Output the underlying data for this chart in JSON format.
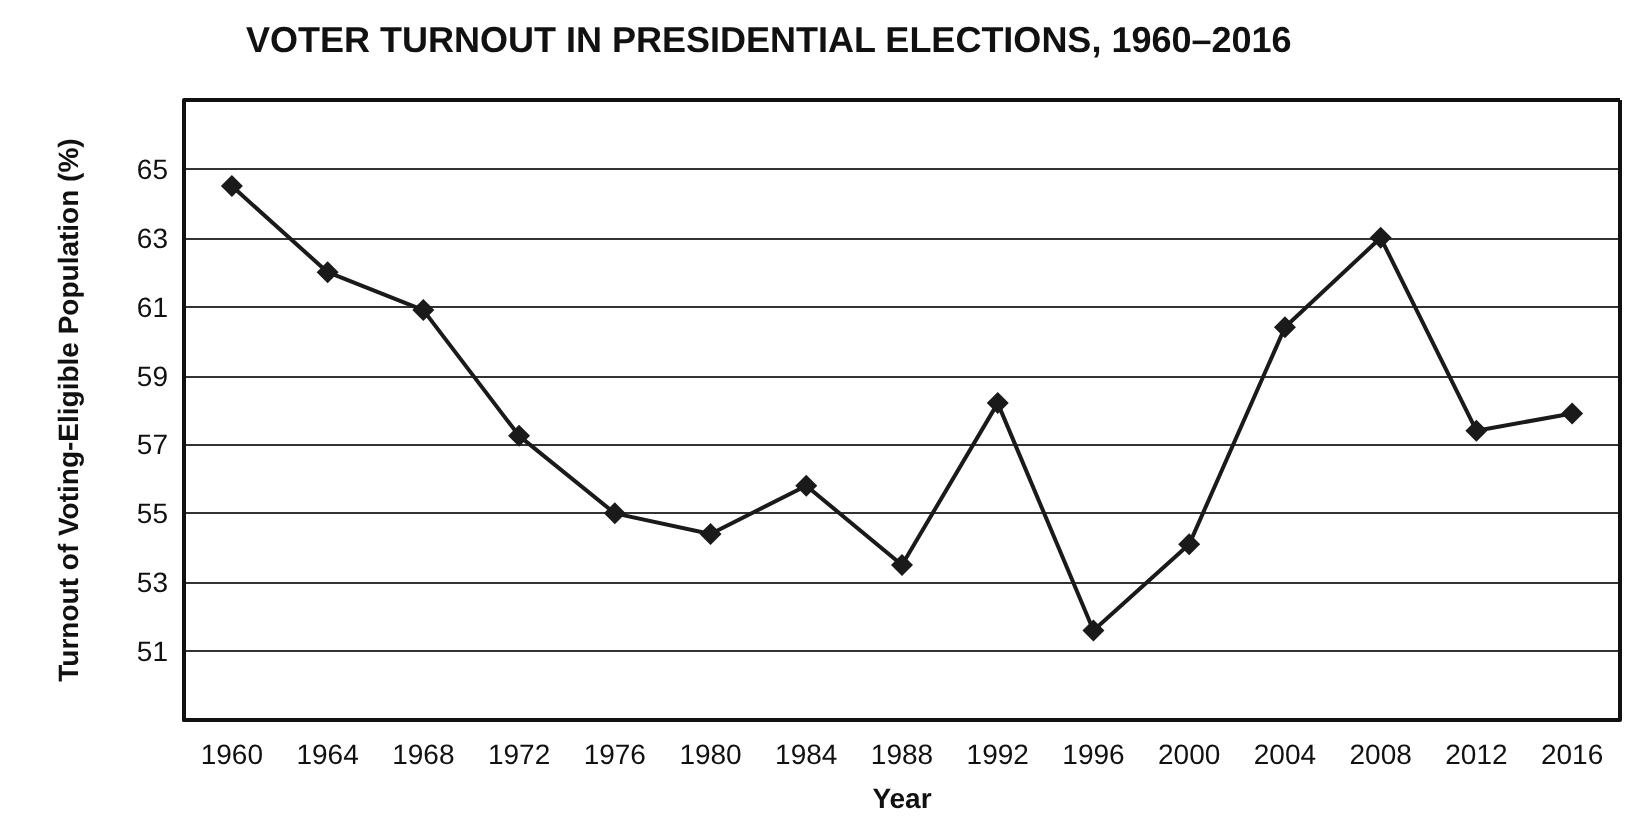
{
  "chart_data": {
    "type": "line",
    "title": "VOTER TURNOUT IN PRESIDENTIAL ELECTIONS, 1960–2016",
    "xlabel": "Year",
    "ylabel": "Turnout of Voting-Eligible Population (%)",
    "categories": [
      "1960",
      "1964",
      "1968",
      "1972",
      "1976",
      "1980",
      "1984",
      "1988",
      "1992",
      "1996",
      "2000",
      "2004",
      "2008",
      "2012",
      "2016"
    ],
    "series": [
      {
        "color": "#1a1a1a",
        "values": [
          64.5,
          62.0,
          60.9,
          57.25,
          55.0,
          54.4,
          55.8,
          53.5,
          58.2,
          51.6,
          54.1,
          60.4,
          63.0,
          57.4,
          57.9
        ]
      }
    ],
    "ylim": [
      49,
      67
    ],
    "yticks": [
      {
        "value": 49,
        "label": null
      },
      51,
      53,
      55,
      57,
      59,
      61,
      63,
      65,
      {
        "value": 67,
        "label": null
      }
    ],
    "grid": "y",
    "marker": "diamond",
    "line_style": "solid"
  }
}
